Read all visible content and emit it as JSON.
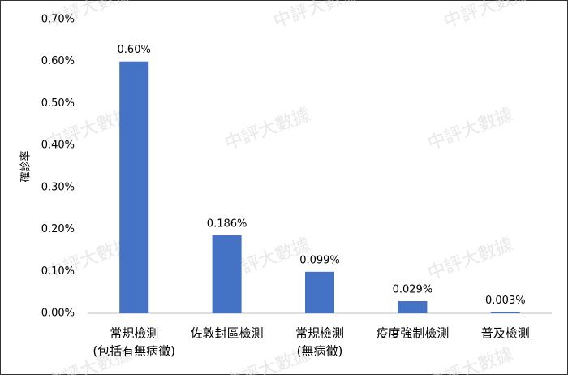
{
  "chart_data": {
    "type": "bar",
    "y_label": "確診率",
    "watermark": "中評大數據",
    "categories": [
      [
        "常規檢測",
        "(包括有無病徵)"
      ],
      [
        "佐敦封區檢測"
      ],
      [
        "常規檢測",
        "(無病徵)"
      ],
      [
        "疫度強制檢測"
      ],
      [
        "普及檢測"
      ]
    ],
    "values": [
      0.6,
      0.186,
      0.099,
      0.029,
      0.003
    ],
    "value_labels": [
      "0.60%",
      "0.186%",
      "0.099%",
      "0.029%",
      "0.003%"
    ],
    "color": "#4472c4",
    "ylim": [
      0,
      0.7
    ],
    "yticks": [
      {
        "value": 0,
        "label": "0.00%"
      },
      {
        "value": 0.1,
        "label": "0.10%"
      },
      {
        "value": 0.2,
        "label": "0.20%"
      },
      {
        "value": 0.3,
        "label": "0.30%"
      },
      {
        "value": 0.4,
        "label": "0.40%"
      },
      {
        "value": 0.5,
        "label": "0.50%"
      },
      {
        "value": 0.6,
        "label": "0.60%"
      },
      {
        "value": 0.7,
        "label": "0.70%"
      }
    ],
    "grid": false
  }
}
